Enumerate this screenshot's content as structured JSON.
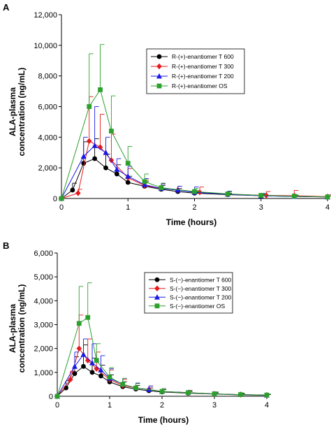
{
  "chart_data": [
    {
      "panel_label": "A",
      "type": "line",
      "xlabel": "Time (hours)",
      "ylabel_lines": [
        "ALA-plasma",
        "concentration (ng/mL)"
      ],
      "xlim": [
        0,
        4
      ],
      "ylim": [
        0,
        12000
      ],
      "x_ticks": [
        0,
        1,
        2,
        3,
        4
      ],
      "x_tick_labels": [
        "0",
        "1",
        "2",
        "3",
        "4"
      ],
      "y_ticks": [
        0,
        2000,
        4000,
        6000,
        8000,
        10000,
        12000
      ],
      "y_tick_labels": [
        "0",
        "2,000",
        "4,000",
        "6,000",
        "8,000",
        "10,000",
        "12,000"
      ],
      "legend_position": "top-right",
      "grid": false,
      "series": [
        {
          "name": "R-(+)-enantiomer T 600",
          "color": "#000000",
          "marker": "circle",
          "x": [
            0,
            0.167,
            0.333,
            0.5,
            0.667,
            0.833,
            1.0,
            1.25,
            1.5,
            1.75,
            2.0,
            2.5,
            3.0,
            3.5,
            4.0
          ],
          "y": [
            0,
            550,
            2300,
            2600,
            2000,
            1600,
            1050,
            800,
            600,
            450,
            350,
            250,
            180,
            130,
            100
          ],
          "err": [
            0,
            450,
            1400,
            1300,
            900,
            600,
            400,
            300,
            250,
            200,
            150,
            100,
            80,
            60,
            50
          ]
        },
        {
          "name": "R-(+)-enantiomer T 300",
          "color": "#e8191c",
          "marker": "diamond",
          "x": [
            0,
            0.25,
            0.417,
            0.583,
            0.75,
            1.0,
            1.25,
            1.5,
            1.75,
            2.08,
            2.5,
            3.08,
            3.5,
            4.0
          ],
          "y": [
            0,
            350,
            3750,
            3350,
            2500,
            1350,
            850,
            650,
            550,
            400,
            280,
            200,
            180,
            120
          ],
          "err": [
            0,
            250,
            2900,
            2150,
            1700,
            600,
            350,
            300,
            250,
            350,
            200,
            250,
            350,
            120
          ]
        },
        {
          "name": "R-(+)-enantiomer T 200",
          "color": "#1818e6",
          "marker": "triangle",
          "x": [
            0,
            0.333,
            0.5,
            0.667,
            0.833,
            1.0,
            1.25,
            1.5,
            1.75,
            2.0,
            2.5,
            3.0,
            3.5,
            4.0
          ],
          "y": [
            0,
            2750,
            3450,
            3000,
            1900,
            1450,
            900,
            650,
            550,
            400,
            280,
            180,
            130,
            100
          ],
          "err": [
            0,
            1250,
            2550,
            1000,
            700,
            650,
            400,
            300,
            250,
            350,
            200,
            150,
            100,
            60
          ]
        },
        {
          "name": "R-(+)-enantiomer OS",
          "color": "#2ca02c",
          "marker": "square",
          "x": [
            0,
            0.417,
            0.583,
            0.75,
            1.0,
            1.25,
            1.5,
            2.0,
            2.5,
            3.0,
            3.5,
            4.0
          ],
          "y": [
            0,
            6000,
            7100,
            4400,
            2300,
            1100,
            700,
            450,
            300,
            200,
            150,
            100
          ],
          "err": [
            0,
            3450,
            2950,
            2300,
            1100,
            500,
            300,
            200,
            150,
            100,
            80,
            60
          ]
        }
      ]
    },
    {
      "panel_label": "B",
      "type": "line",
      "xlabel": "Time (hours)",
      "ylabel_lines": [
        "ALA-plasma",
        "concentration (ng/mL)"
      ],
      "xlim": [
        0,
        4
      ],
      "ylim": [
        0,
        6000
      ],
      "x_ticks": [
        0,
        1,
        2,
        3,
        4
      ],
      "x_tick_labels": [
        "0",
        "1",
        "2",
        "3",
        "4"
      ],
      "y_ticks": [
        0,
        1000,
        2000,
        3000,
        4000,
        5000,
        6000
      ],
      "y_tick_labels": [
        "0",
        "1,000",
        "2,000",
        "3,000",
        "4,000",
        "5,000",
        "6,000"
      ],
      "legend_position": "top-right",
      "grid": false,
      "series": [
        {
          "name": "S-(−)-enantiomer T 600",
          "color": "#000000",
          "marker": "circle",
          "x": [
            0,
            0.167,
            0.333,
            0.5,
            0.667,
            0.833,
            1.0,
            1.25,
            1.5,
            1.75,
            2.0,
            2.5,
            3.0,
            3.5,
            4.0
          ],
          "y": [
            0,
            350,
            950,
            1250,
            1000,
            850,
            600,
            400,
            300,
            230,
            180,
            130,
            90,
            60,
            40
          ],
          "err": [
            0,
            300,
            700,
            900,
            600,
            450,
            300,
            200,
            150,
            120,
            100,
            70,
            50,
            40,
            30
          ]
        },
        {
          "name": "S-(−)-enantiomer T 300",
          "color": "#e8191c",
          "marker": "diamond",
          "x": [
            0,
            0.25,
            0.417,
            0.583,
            0.75,
            1.0,
            1.25,
            1.5,
            1.75,
            2.0,
            2.5,
            3.0,
            3.5,
            4.0
          ],
          "y": [
            0,
            700,
            2000,
            1500,
            1150,
            700,
            450,
            350,
            280,
            200,
            150,
            100,
            70,
            50
          ],
          "err": [
            0,
            350,
            1400,
            900,
            700,
            400,
            250,
            200,
            150,
            120,
            100,
            80,
            60,
            40
          ]
        },
        {
          "name": "S-(−)-enantiomer T 200",
          "color": "#1818e6",
          "marker": "triangle",
          "x": [
            0,
            0.333,
            0.5,
            0.667,
            0.833,
            1.0,
            1.25,
            1.5,
            1.75,
            2.0,
            2.5,
            3.0,
            3.5,
            4.0
          ],
          "y": [
            0,
            1250,
            1750,
            1400,
            1100,
            750,
            500,
            350,
            280,
            200,
            150,
            100,
            70,
            50
          ],
          "err": [
            0,
            600,
            650,
            800,
            600,
            400,
            250,
            200,
            150,
            120,
            90,
            70,
            50,
            40
          ]
        },
        {
          "name": "S-(−)-enantiomer OS",
          "color": "#2ca02c",
          "marker": "square",
          "x": [
            0,
            0.417,
            0.583,
            0.75,
            1.0,
            1.25,
            1.5,
            2.0,
            2.5,
            3.0,
            3.5,
            4.0
          ],
          "y": [
            0,
            3050,
            3300,
            1500,
            800,
            500,
            350,
            200,
            150,
            100,
            70,
            50
          ],
          "err": [
            0,
            1550,
            1450,
            700,
            400,
            250,
            180,
            120,
            90,
            70,
            50,
            40
          ]
        }
      ]
    }
  ]
}
